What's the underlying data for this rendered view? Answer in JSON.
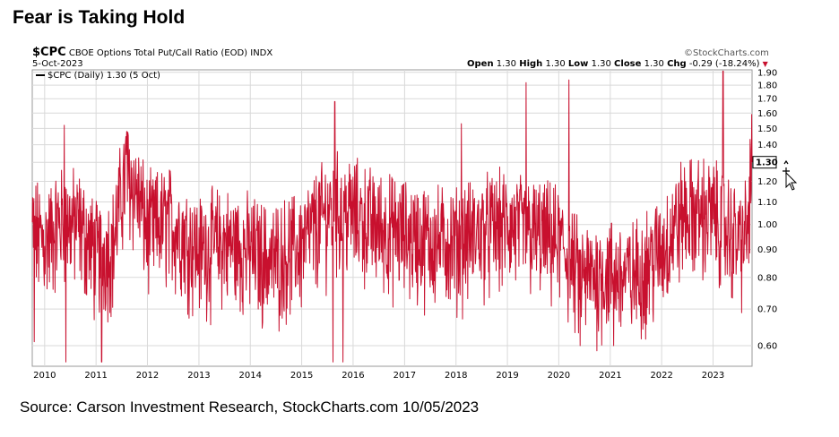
{
  "page": {
    "title": "Fear is Taking Hold",
    "source": "Source: Carson Investment Research, StockCharts.com 10/05/2023"
  },
  "header": {
    "symbol": "$CPC",
    "description": "CBOE Options Total Put/Call Ratio (EOD)",
    "exchange": "INDX",
    "date": "5-Oct-2023",
    "watermark": "©StockCharts.com",
    "quote": {
      "open_label": "Open",
      "open": "1.30",
      "high_label": "High",
      "high": "1.30",
      "low_label": "Low",
      "low": "1.30",
      "close_label": "Close",
      "close": "1.30",
      "chg_label": "Chg",
      "chg": "-0.29 (-18.24%)"
    },
    "arrow": "▼"
  },
  "colors": {
    "series": "#c8102e",
    "grid": "#d9d9d9",
    "arrow": "#c8102e"
  },
  "chart_data": {
    "type": "line",
    "legend": "$CPC (Daily) 1.30 (5 Oct)",
    "last_value_label": "1.30",
    "ylim": [
      0.55,
      1.92
    ],
    "y_scale": "log",
    "y_ticks": [
      0.6,
      0.7,
      0.8,
      0.9,
      1.0,
      1.1,
      1.2,
      1.3,
      1.4,
      1.5,
      1.6,
      1.7,
      1.8,
      1.9
    ],
    "y_tick_labels": [
      "0.60",
      "0.70",
      "0.80",
      "0.90",
      "1.00",
      "1.10",
      "1.20",
      "1.30",
      "1.40",
      "1.50",
      "1.60",
      "1.70",
      "1.80",
      "1.90"
    ],
    "x_ticks": [
      "2010",
      "2011",
      "2012",
      "2013",
      "2014",
      "2015",
      "2016",
      "2017",
      "2018",
      "2019",
      "2020",
      "2021",
      "2022",
      "2023"
    ],
    "x_start": "2009-10-05",
    "x_end": "2023-10-05",
    "trend": [
      [
        "2009-10-05",
        0.98
      ],
      [
        "2010-01-01",
        0.93
      ],
      [
        "2010-05-01",
        1.02
      ],
      [
        "2010-09-01",
        1.0
      ],
      [
        "2011-01-01",
        0.88
      ],
      [
        "2011-05-01",
        0.92
      ],
      [
        "2011-08-01",
        1.25
      ],
      [
        "2011-10-01",
        1.18
      ],
      [
        "2012-01-01",
        0.98
      ],
      [
        "2012-06-01",
        1.02
      ],
      [
        "2013-01-01",
        0.9
      ],
      [
        "2013-06-01",
        0.93
      ],
      [
        "2014-01-01",
        0.9
      ],
      [
        "2014-06-01",
        0.86
      ],
      [
        "2015-01-01",
        0.92
      ],
      [
        "2015-08-01",
        1.08
      ],
      [
        "2016-01-01",
        1.05
      ],
      [
        "2016-06-01",
        1.0
      ],
      [
        "2017-01-01",
        0.96
      ],
      [
        "2017-06-01",
        0.94
      ],
      [
        "2018-01-01",
        0.93
      ],
      [
        "2018-06-01",
        0.97
      ],
      [
        "2019-01-01",
        1.0
      ],
      [
        "2019-06-01",
        0.97
      ],
      [
        "2020-01-01",
        0.93
      ],
      [
        "2020-06-01",
        0.8
      ],
      [
        "2021-01-01",
        0.82
      ],
      [
        "2021-06-01",
        0.8
      ],
      [
        "2022-01-01",
        0.9
      ],
      [
        "2022-06-01",
        1.05
      ],
      [
        "2023-01-01",
        1.05
      ],
      [
        "2023-07-01",
        0.93
      ],
      [
        "2023-09-01",
        0.96
      ],
      [
        "2023-10-05",
        1.3
      ]
    ],
    "spikes": [
      [
        "2009-10-20",
        0.61
      ],
      [
        "2010-06-01",
        0.55
      ],
      [
        "2010-05-20",
        1.52
      ],
      [
        "2011-02-10",
        0.56
      ],
      [
        "2011-08-08",
        1.48
      ],
      [
        "2015-08-24",
        1.68
      ],
      [
        "2015-08-10",
        0.56
      ],
      [
        "2015-10-20",
        0.55
      ],
      [
        "2018-02-08",
        1.53
      ],
      [
        "2019-05-15",
        1.82
      ],
      [
        "2020-03-12",
        1.84
      ],
      [
        "2020-06-01",
        0.6
      ],
      [
        "2021-01-25",
        0.6
      ],
      [
        "2023-03-13",
        1.91
      ],
      [
        "2023-10-03",
        1.59
      ],
      [
        "2023-10-05",
        1.3
      ]
    ]
  },
  "icons": {
    "cursor": "crosshair-move-cursor-icon"
  }
}
